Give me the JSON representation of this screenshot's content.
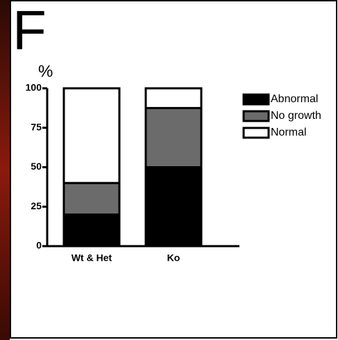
{
  "panel_label": "F",
  "chart_data": {
    "type": "stacked-bar",
    "y_label": "%",
    "categories": [
      "Wt & Het",
      "Ko"
    ],
    "series": [
      {
        "name": "Abnormal",
        "color": "#000000",
        "values": [
          20,
          50
        ]
      },
      {
        "name": "No growth",
        "color": "#6b6b6b",
        "values": [
          20,
          37.5
        ]
      },
      {
        "name": "Normal",
        "color": "#ffffff",
        "values": [
          60,
          12.5
        ]
      }
    ],
    "ylim": [
      0,
      100
    ],
    "yticks": [
      0,
      25,
      50,
      75,
      100
    ]
  }
}
